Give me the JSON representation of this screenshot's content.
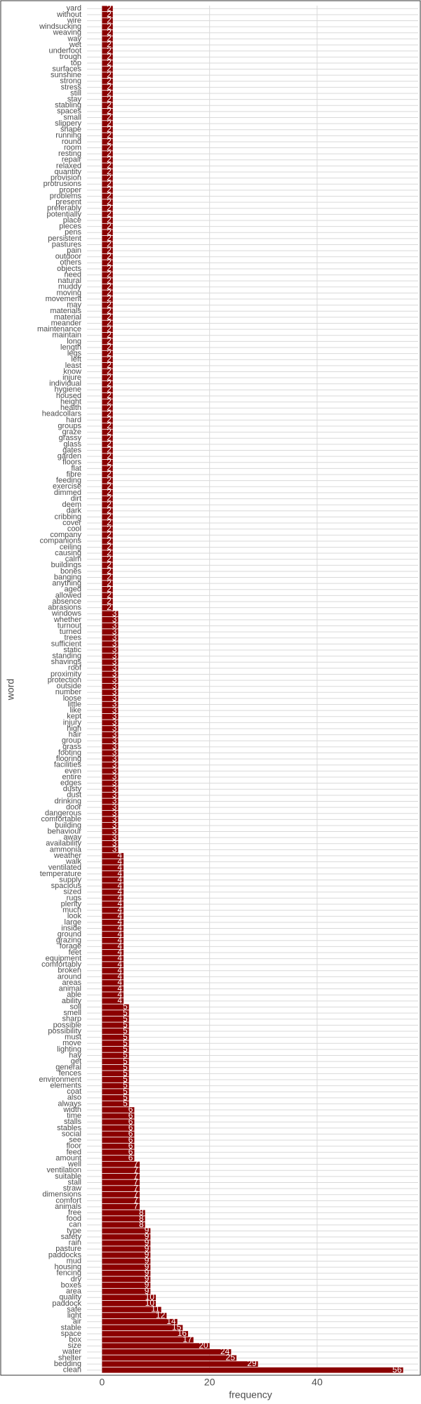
{
  "chart_data": {
    "type": "hbar",
    "x_label": "frequency",
    "y_label": "word",
    "color": "#8b0000",
    "xlim": [
      -2.8,
      58.8
    ],
    "xticks": [
      0,
      20,
      40
    ],
    "grid": true,
    "categories": [
      "yard",
      "without",
      "wire",
      "windsucking",
      "weaving",
      "way",
      "wet",
      "underfoot",
      "trough",
      "top",
      "surfaces",
      "sunshine",
      "strong",
      "stress",
      "still",
      "stay",
      "stabling",
      "spaces",
      "small",
      "slippery",
      "shape",
      "running",
      "round",
      "room",
      "resting",
      "repair",
      "relaxed",
      "quantity",
      "provision",
      "protrusions",
      "proper",
      "problems",
      "present",
      "preferably",
      "potentially",
      "place",
      "pieces",
      "pens",
      "persistent",
      "pastures",
      "pain",
      "outdoor",
      "others",
      "objects",
      "need",
      "natural",
      "muddy",
      "moving",
      "movement",
      "may",
      "materials",
      "material",
      "meander",
      "maintenance",
      "maintain",
      "long",
      "length",
      "legs",
      "left",
      "least",
      "know",
      "injure",
      "individual",
      "hygiene",
      "housed",
      "height",
      "health",
      "headcollars",
      "hard",
      "groups",
      "graze",
      "grassy",
      "glass",
      "gates",
      "garden",
      "floors",
      "flat",
      "fibre",
      "feeding",
      "exercise",
      "dimmed",
      "dirt",
      "deem",
      "dark",
      "cribbing",
      "cover",
      "cool",
      "company",
      "companions",
      "ceiling",
      "causing",
      "calm",
      "buildings",
      "bones",
      "banging",
      "anything",
      "aged",
      "allowed",
      "absence",
      "abrasions",
      "windows",
      "whether",
      "turnout",
      "turned",
      "trees",
      "sufficient",
      "static",
      "standing",
      "shavings",
      "roof",
      "proximity",
      "protection",
      "outside",
      "number",
      "loose",
      "little",
      "like",
      "kept",
      "injury",
      "high",
      "hair",
      "group",
      "grass",
      "footing",
      "flooring",
      "facilities",
      "even",
      "entire",
      "edges",
      "dusty",
      "dust",
      "drinking",
      "door",
      "dangerous",
      "comfortable",
      "building",
      "behaviour",
      "away",
      "availability",
      "ammonia",
      "weather",
      "walk",
      "ventilated",
      "temperature",
      "supply",
      "spacious",
      "sized",
      "rugs",
      "plenty",
      "much",
      "look",
      "large",
      "inside",
      "ground",
      "grazing",
      "forage",
      "feet",
      "equipment",
      "comfortably",
      "broken",
      "around",
      "areas",
      "animal",
      "able",
      "ability",
      "soil",
      "smell",
      "sharp",
      "possible",
      "possibility",
      "must",
      "move",
      "lighting",
      "hay",
      "get",
      "general",
      "fences",
      "environment",
      "elements",
      "coat",
      "also",
      "always",
      "width",
      "time",
      "stalls",
      "stables",
      "social",
      "see",
      "floor",
      "feed",
      "amount",
      "well",
      "ventilation",
      "suitable",
      "stall",
      "straw",
      "dimensions",
      "comfort",
      "animals",
      "free",
      "food",
      "can",
      "type",
      "safety",
      "rain",
      "pasture",
      "paddocks",
      "mud",
      "housing",
      "fencing",
      "dry",
      "boxes",
      "area",
      "quality",
      "paddock",
      "safe",
      "light",
      "air",
      "stable",
      "space",
      "box",
      "size",
      "water",
      "shelter",
      "bedding",
      "clean"
    ],
    "values": [
      2,
      2,
      2,
      2,
      2,
      2,
      2,
      2,
      2,
      2,
      2,
      2,
      2,
      2,
      2,
      2,
      2,
      2,
      2,
      2,
      2,
      2,
      2,
      2,
      2,
      2,
      2,
      2,
      2,
      2,
      2,
      2,
      2,
      2,
      2,
      2,
      2,
      2,
      2,
      2,
      2,
      2,
      2,
      2,
      2,
      2,
      2,
      2,
      2,
      2,
      2,
      2,
      2,
      2,
      2,
      2,
      2,
      2,
      2,
      2,
      2,
      2,
      2,
      2,
      2,
      2,
      2,
      2,
      2,
      2,
      2,
      2,
      2,
      2,
      2,
      2,
      2,
      2,
      2,
      2,
      2,
      2,
      2,
      2,
      2,
      2,
      2,
      2,
      2,
      2,
      2,
      2,
      2,
      2,
      2,
      2,
      2,
      2,
      2,
      2,
      3,
      3,
      3,
      3,
      3,
      3,
      3,
      3,
      3,
      3,
      3,
      3,
      3,
      3,
      3,
      3,
      3,
      3,
      3,
      3,
      3,
      3,
      3,
      3,
      3,
      3,
      3,
      3,
      3,
      3,
      3,
      3,
      3,
      3,
      3,
      3,
      3,
      3,
      3,
      3,
      4,
      4,
      4,
      4,
      4,
      4,
      4,
      4,
      4,
      4,
      4,
      4,
      4,
      4,
      4,
      4,
      4,
      4,
      4,
      4,
      4,
      4,
      4,
      4,
      4,
      5,
      5,
      5,
      5,
      5,
      5,
      5,
      5,
      5,
      5,
      5,
      5,
      5,
      5,
      5,
      5,
      5,
      6,
      6,
      6,
      6,
      6,
      6,
      6,
      6,
      6,
      7,
      7,
      7,
      7,
      7,
      7,
      7,
      7,
      8,
      8,
      8,
      9,
      9,
      9,
      9,
      9,
      9,
      9,
      9,
      9,
      9,
      9,
      10,
      10,
      11,
      12,
      14,
      15,
      16,
      17,
      20,
      24,
      25,
      29,
      56
    ]
  }
}
